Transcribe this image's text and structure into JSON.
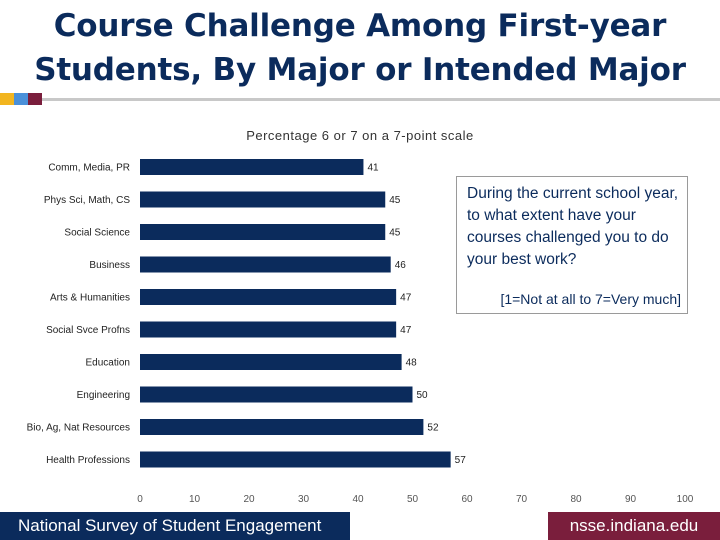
{
  "page": {
    "title_line1": "Course Challenge Among First-year",
    "title_line2": "Students, By Major or Intended Major",
    "accent_colors": [
      "#f2b51f",
      "#4a90d9",
      "#7a1e3c"
    ],
    "callout_question": "During the current school year, to what extent have your courses challenged you to do your best work?",
    "callout_scale": "[1=Not at all to 7=Very much]",
    "footer_left": "National Survey of Student Engagement",
    "footer_right": "nsse.indiana.edu",
    "footer_left_color": "#0b2b5c",
    "footer_right_color": "#7a1e3c"
  },
  "chart_data": {
    "type": "bar",
    "orientation": "horizontal",
    "title": "Percentage 6 or 7 on a 7-point scale",
    "categories": [
      "Comm, Media, PR",
      "Phys Sci, Math, CS",
      "Social Science",
      "Business",
      "Arts & Humanities",
      "Social Svce Profns",
      "Education",
      "Engineering",
      "Bio, Ag, Nat Resources",
      "Health Professions"
    ],
    "values": [
      41,
      45,
      45,
      46,
      47,
      47,
      48,
      50,
      52,
      57
    ],
    "xlim": [
      0,
      100
    ],
    "xticks": [
      0,
      10,
      20,
      30,
      40,
      50,
      60,
      70,
      80,
      90,
      100
    ],
    "bar_color": "#0b2b5c",
    "grid": false,
    "legend": "none"
  }
}
